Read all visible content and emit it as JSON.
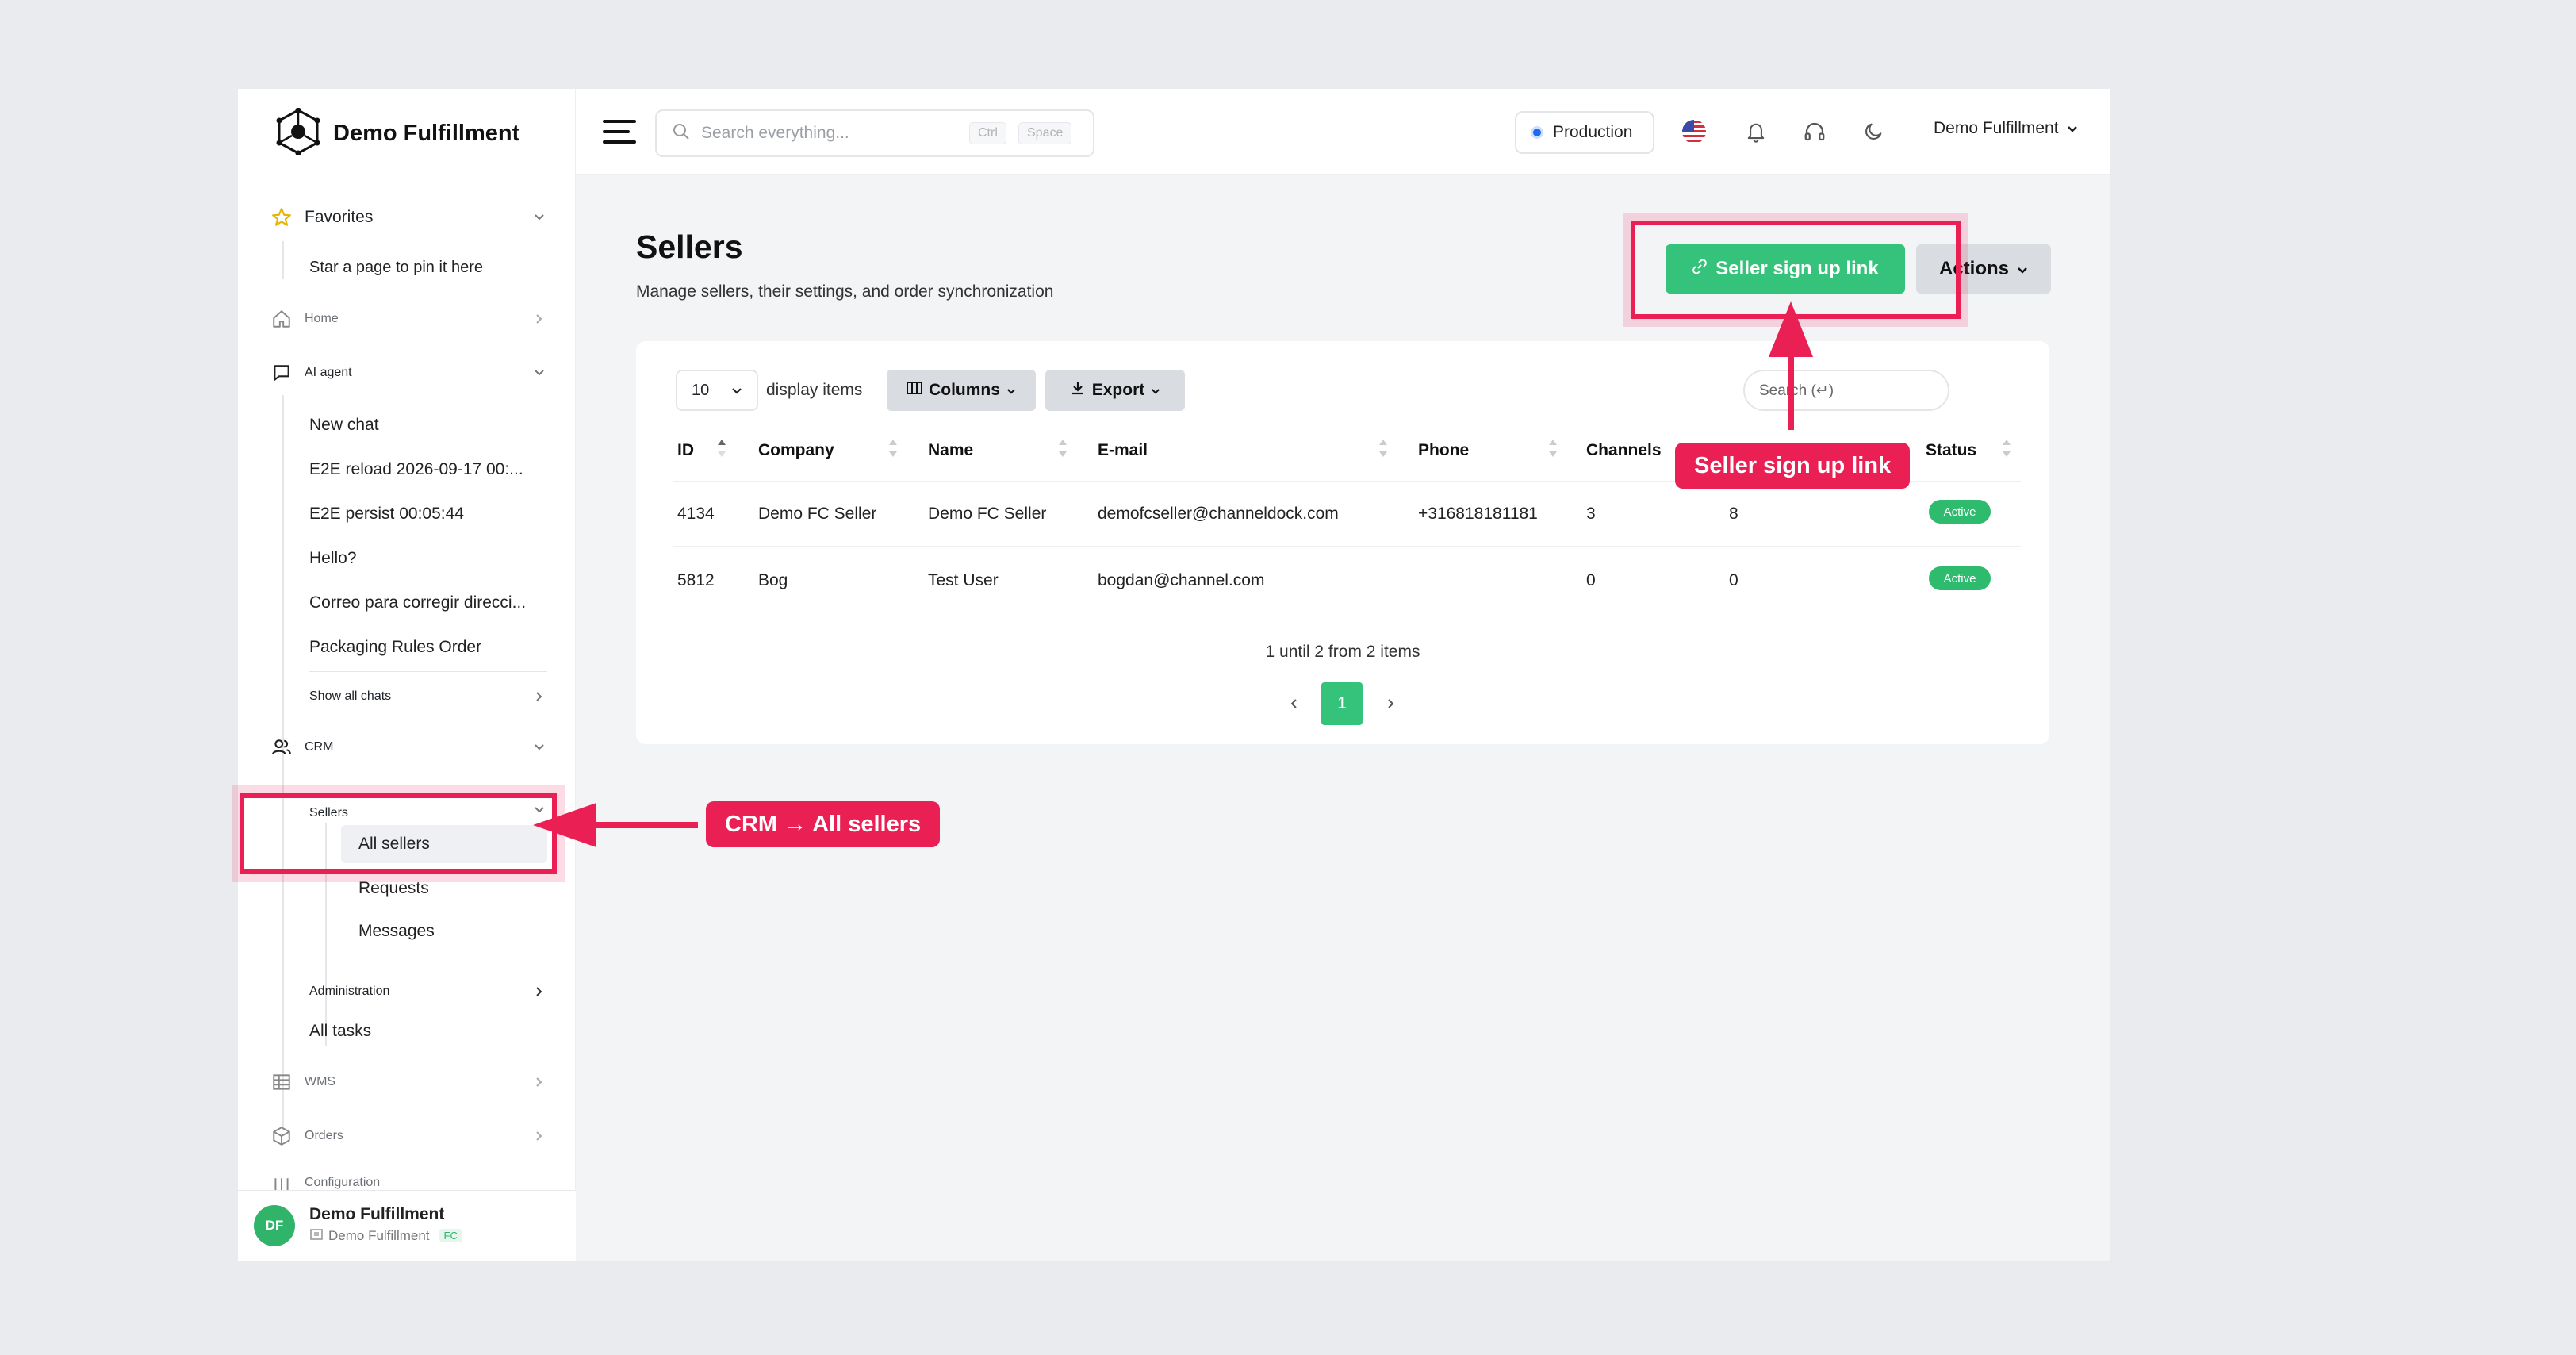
{
  "brand": {
    "name": "Demo Fulfillment"
  },
  "sidebar": {
    "favorites_label": "Favorites",
    "favorites_hint": "Star a page to pin it here",
    "home_label": "Home",
    "ai_agent_label": "AI agent",
    "chats": [
      "New chat",
      "E2E reload 2026-09-17 00:...",
      "E2E persist 00:05:44",
      "Hello?",
      "Correo para corregir direcci...",
      "Packaging Rules Order"
    ],
    "show_all_chats": "Show all chats",
    "crm_label": "CRM",
    "sellers_label": "Sellers",
    "sellers_items": [
      "All sellers",
      "Requests",
      "Messages"
    ],
    "administration_label": "Administration",
    "all_tasks_label": "All tasks",
    "wms_label": "WMS",
    "orders_label": "Orders",
    "configuration_label": "Configuration",
    "footer": {
      "initials": "DF",
      "name": "Demo Fulfillment",
      "org": "Demo Fulfillment",
      "org_badge": "FC"
    }
  },
  "header": {
    "search_placeholder": "Search everything...",
    "shortcut_keys": [
      "Ctrl",
      "Space"
    ],
    "environment": "Production",
    "user_menu": "Demo Fulfillment"
  },
  "page": {
    "title": "Sellers",
    "subtitle": "Manage sellers, their settings, and order synchronization",
    "signup_button": "Seller sign up link",
    "actions_button": "Actions"
  },
  "table": {
    "page_size": "10",
    "page_size_label": "display items",
    "columns_button": "Columns",
    "export_button": "Export",
    "search_placeholder": "Search (↵)",
    "headers": {
      "id": "ID",
      "company": "Company",
      "name": "Name",
      "email": "E-mail",
      "phone": "Phone",
      "channels": "Channels",
      "status": "Status"
    },
    "rows": [
      {
        "id": "4134",
        "company": "Demo FC Seller",
        "name": "Demo FC Seller",
        "email": "demofcseller@channeldock.com",
        "phone": "+316818181181",
        "channels": "3",
        "col7": "8",
        "status": "Active"
      },
      {
        "id": "5812",
        "company": "Bog",
        "name": "Test User",
        "email": "bogdan@channel.com",
        "phone": "",
        "channels": "0",
        "col7": "0",
        "status": "Active"
      }
    ],
    "pagination_info": "1 until 2 from 2 items",
    "current_page": "1"
  },
  "annotations": {
    "signup_tag": "Seller sign up link",
    "crm_tag": "CRM → All sellers"
  },
  "colors": {
    "accent_green": "#35c27a",
    "annotation_red": "#ea1f54",
    "status_green": "#2fbb6d"
  }
}
